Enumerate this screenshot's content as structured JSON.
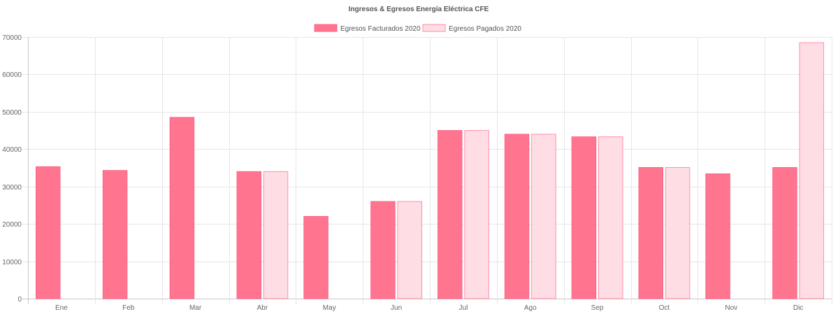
{
  "chart_data": {
    "type": "bar",
    "title": "Ingresos & Egresos Energía Eléctrica CFE",
    "categories": [
      "Ene",
      "Feb",
      "Mar",
      "Abr",
      "May",
      "Jun",
      "Jul",
      "Ago",
      "Sep",
      "Oct",
      "Nov",
      "Dic"
    ],
    "series": [
      {
        "name": "Egresos Facturados 2020",
        "fill": "#ff7590",
        "stroke": "#ff6384",
        "values": [
          35300,
          34300,
          48500,
          34000,
          22000,
          26000,
          45000,
          44000,
          43300,
          35100,
          33400,
          35100
        ]
      },
      {
        "name": "Egresos Pagados 2020",
        "fill": "#ffdde4",
        "stroke": "#ff8fa6",
        "values": [
          0,
          0,
          0,
          34000,
          0,
          26000,
          45000,
          44000,
          43300,
          35100,
          0,
          68500
        ]
      }
    ],
    "ylim": [
      0,
      70000
    ],
    "yticks": [
      0,
      10000,
      20000,
      30000,
      40000,
      50000,
      60000,
      70000
    ],
    "xlabel": "",
    "ylabel": "",
    "grid": true,
    "legend_position": "top-center"
  }
}
